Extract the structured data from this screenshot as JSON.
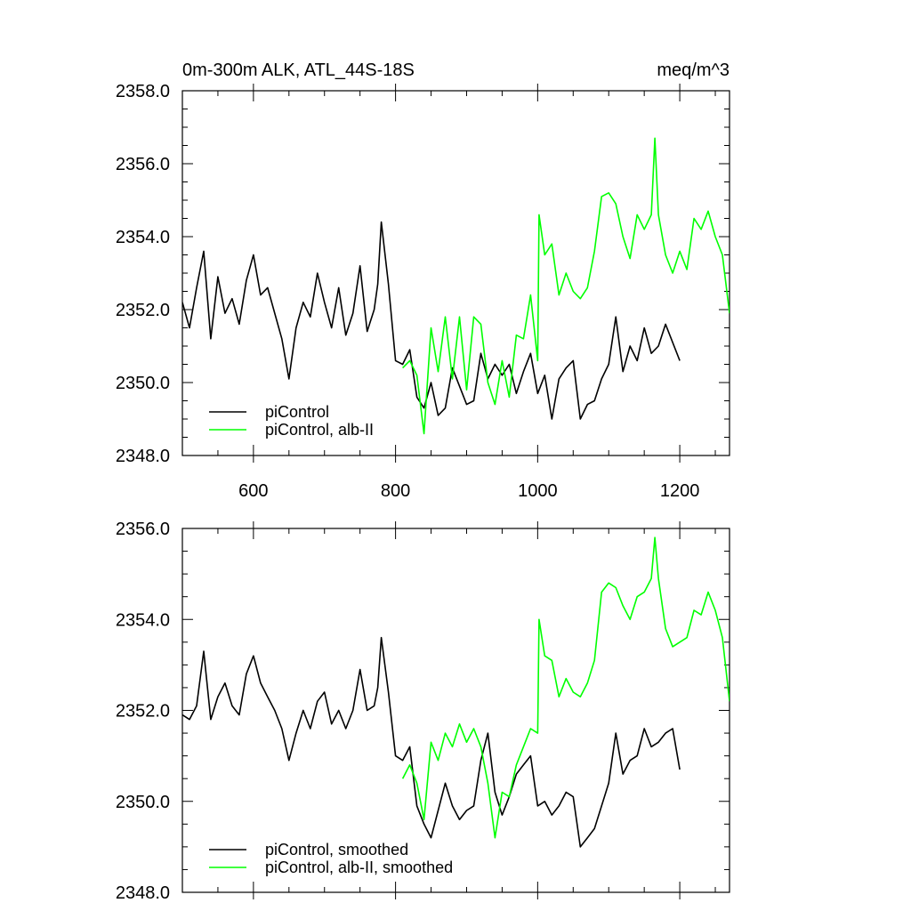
{
  "chart_data": [
    {
      "type": "line",
      "title": "0m-300m ALK, ATL_44S-18S",
      "units": "meq/m^3",
      "xlim": [
        500,
        1270
      ],
      "ylim": [
        2348,
        2358
      ],
      "xticks": [
        "600",
        "800",
        "1000",
        "1200"
      ],
      "yticks": [
        "2348.0",
        "2350.0",
        "2352.0",
        "2354.0",
        "2356.0",
        "2358.0"
      ],
      "xlabel": "",
      "ylabel": "",
      "legend_position": "bottom-left",
      "grid": false,
      "series": [
        {
          "name": "piControl",
          "color": "#000000",
          "x": [
            500,
            510,
            520,
            530,
            540,
            550,
            560,
            570,
            580,
            590,
            600,
            610,
            620,
            630,
            640,
            650,
            660,
            670,
            680,
            690,
            700,
            710,
            720,
            730,
            740,
            750,
            760,
            770,
            775,
            780,
            790,
            800,
            810,
            820,
            830,
            840,
            850,
            860,
            870,
            880,
            890,
            900,
            910,
            920,
            930,
            940,
            950,
            960,
            970,
            980,
            990,
            1000,
            1010,
            1020,
            1030,
            1040,
            1050,
            1060,
            1070,
            1080,
            1090,
            1100,
            1110,
            1120,
            1130,
            1140,
            1150,
            1160,
            1170,
            1180,
            1190,
            1200
          ],
          "y": [
            2352.2,
            2351.5,
            2352.6,
            2353.6,
            2351.2,
            2352.9,
            2351.9,
            2352.3,
            2351.6,
            2352.8,
            2353.5,
            2352.4,
            2352.6,
            2351.9,
            2351.2,
            2350.1,
            2351.5,
            2352.2,
            2351.8,
            2353.0,
            2352.2,
            2351.5,
            2352.6,
            2351.3,
            2351.9,
            2353.2,
            2351.4,
            2352.0,
            2352.7,
            2354.4,
            2352.7,
            2350.6,
            2350.5,
            2350.9,
            2349.6,
            2349.3,
            2350.0,
            2349.1,
            2349.3,
            2350.4,
            2349.9,
            2349.4,
            2349.5,
            2350.8,
            2350.1,
            2350.5,
            2350.2,
            2350.5,
            2349.7,
            2350.3,
            2350.8,
            2349.7,
            2350.2,
            2349.0,
            2350.1,
            2350.4,
            2350.6,
            2349.0,
            2349.4,
            2349.5,
            2350.1,
            2350.5,
            2351.8,
            2350.3,
            2351.0,
            2350.6,
            2351.5,
            2350.8,
            2351.0,
            2351.6,
            2351.1,
            2350.6
          ]
        },
        {
          "name": "piControl, alb-II",
          "color": "#00ff00",
          "x": [
            810,
            820,
            830,
            840,
            850,
            860,
            870,
            880,
            890,
            900,
            910,
            920,
            930,
            940,
            950,
            960,
            970,
            980,
            990,
            1000,
            1002,
            1010,
            1020,
            1030,
            1040,
            1050,
            1060,
            1070,
            1080,
            1090,
            1100,
            1110,
            1120,
            1130,
            1140,
            1150,
            1160,
            1165,
            1170,
            1180,
            1190,
            1200,
            1210,
            1220,
            1230,
            1240,
            1250,
            1260,
            1270
          ],
          "y": [
            2350.4,
            2350.6,
            2350.2,
            2348.6,
            2351.5,
            2350.3,
            2351.8,
            2350.1,
            2351.8,
            2349.8,
            2351.8,
            2351.6,
            2350.0,
            2349.4,
            2350.6,
            2349.6,
            2351.3,
            2351.2,
            2352.4,
            2350.6,
            2354.6,
            2353.5,
            2353.8,
            2352.4,
            2353.0,
            2352.5,
            2352.3,
            2352.6,
            2353.6,
            2355.1,
            2355.2,
            2354.9,
            2354.0,
            2353.4,
            2354.6,
            2354.2,
            2354.6,
            2356.7,
            2354.6,
            2353.5,
            2353.0,
            2353.6,
            2353.1,
            2354.5,
            2354.2,
            2354.7,
            2354.0,
            2353.5,
            2351.9
          ]
        }
      ]
    },
    {
      "type": "line",
      "title": "",
      "xlim": [
        500,
        1270
      ],
      "ylim": [
        2348,
        2356
      ],
      "xticks": [],
      "yticks": [
        "2348.0",
        "2350.0",
        "2352.0",
        "2354.0",
        "2356.0"
      ],
      "xlabel": "",
      "ylabel": "",
      "legend_position": "bottom-left",
      "grid": false,
      "series": [
        {
          "name": "piControl, smoothed",
          "color": "#000000",
          "x": [
            500,
            510,
            520,
            530,
            540,
            550,
            560,
            570,
            580,
            590,
            600,
            610,
            620,
            630,
            640,
            650,
            660,
            670,
            680,
            690,
            700,
            710,
            720,
            730,
            740,
            750,
            760,
            770,
            775,
            780,
            790,
            800,
            810,
            820,
            830,
            840,
            850,
            860,
            870,
            880,
            890,
            900,
            910,
            920,
            930,
            940,
            950,
            960,
            970,
            980,
            990,
            1000,
            1010,
            1020,
            1030,
            1040,
            1050,
            1060,
            1070,
            1080,
            1090,
            1100,
            1110,
            1120,
            1130,
            1140,
            1150,
            1160,
            1170,
            1180,
            1190,
            1200
          ],
          "y": [
            2351.9,
            2351.8,
            2352.1,
            2353.3,
            2351.8,
            2352.3,
            2352.6,
            2352.1,
            2351.9,
            2352.8,
            2353.2,
            2352.6,
            2352.3,
            2352.0,
            2351.6,
            2350.9,
            2351.5,
            2352.0,
            2351.6,
            2352.2,
            2352.4,
            2351.7,
            2352.0,
            2351.6,
            2352.0,
            2352.9,
            2352.0,
            2352.1,
            2352.5,
            2353.6,
            2352.4,
            2351.0,
            2350.9,
            2351.2,
            2349.9,
            2349.5,
            2349.2,
            2349.8,
            2350.4,
            2349.9,
            2349.6,
            2349.8,
            2349.9,
            2350.9,
            2351.5,
            2350.2,
            2349.7,
            2350.1,
            2350.6,
            2350.8,
            2351.0,
            2349.9,
            2350.0,
            2349.7,
            2349.9,
            2350.2,
            2350.1,
            2349.0,
            2349.2,
            2349.4,
            2349.9,
            2350.4,
            2351.5,
            2350.6,
            2350.9,
            2351.0,
            2351.6,
            2351.2,
            2351.3,
            2351.5,
            2351.6,
            2350.7
          ]
        },
        {
          "name": "piControl, alb-II, smoothed",
          "color": "#00ff00",
          "x": [
            810,
            820,
            830,
            840,
            850,
            860,
            870,
            880,
            890,
            900,
            910,
            920,
            930,
            940,
            950,
            960,
            970,
            980,
            990,
            1000,
            1002,
            1010,
            1020,
            1030,
            1040,
            1050,
            1060,
            1070,
            1080,
            1090,
            1100,
            1110,
            1120,
            1130,
            1140,
            1150,
            1160,
            1165,
            1170,
            1180,
            1190,
            1200,
            1210,
            1220,
            1230,
            1240,
            1250,
            1260,
            1270
          ],
          "y": [
            2350.5,
            2350.8,
            2350.4,
            2349.6,
            2351.3,
            2350.9,
            2351.5,
            2351.2,
            2351.7,
            2351.3,
            2351.6,
            2351.2,
            2350.4,
            2349.2,
            2350.2,
            2350.1,
            2350.8,
            2351.2,
            2351.6,
            2351.5,
            2354.0,
            2353.2,
            2353.1,
            2352.3,
            2352.7,
            2352.4,
            2352.3,
            2352.6,
            2353.1,
            2354.6,
            2354.8,
            2354.7,
            2354.3,
            2354.0,
            2354.5,
            2354.6,
            2354.9,
            2355.8,
            2354.9,
            2353.8,
            2353.4,
            2353.5,
            2353.6,
            2354.2,
            2354.1,
            2354.6,
            2354.2,
            2353.6,
            2352.2
          ]
        }
      ]
    }
  ]
}
